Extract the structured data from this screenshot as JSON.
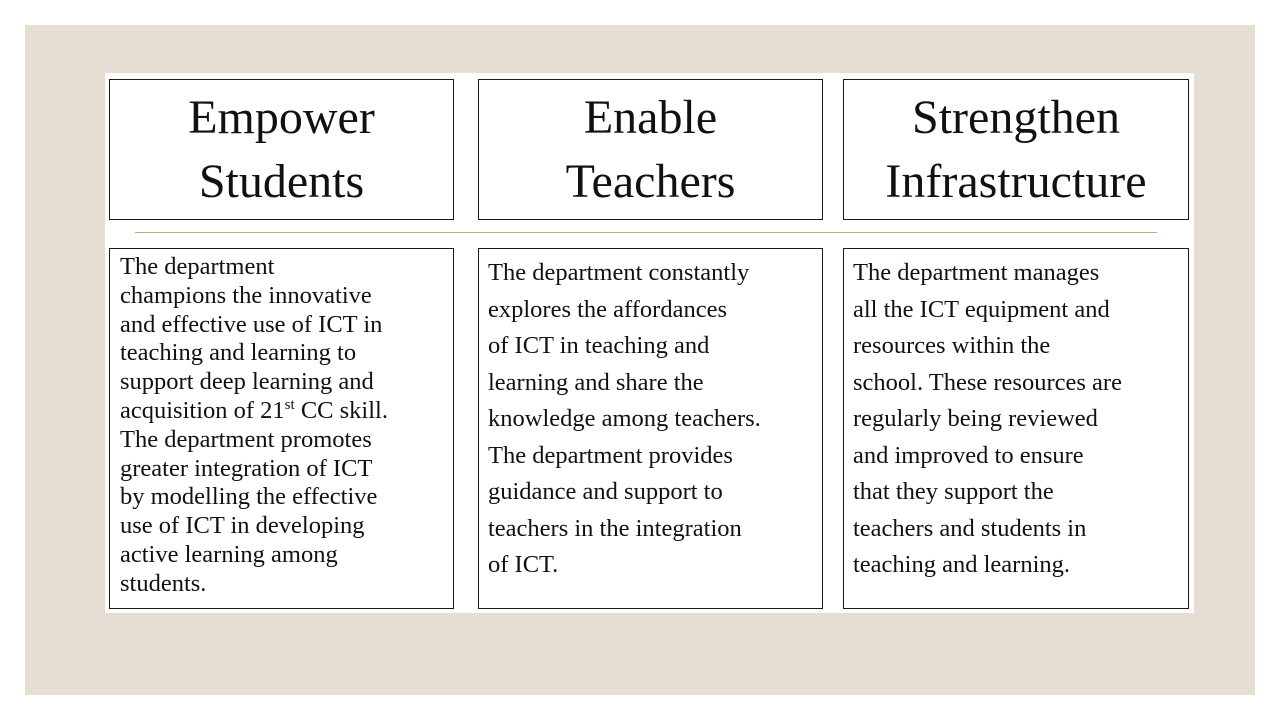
{
  "columns": [
    {
      "title": "Empower\nStudents",
      "body_part1": "The department\nchampions the innovative\nand effective use of ICT in\nteaching and learning to\nsupport deep learning and\nacquisition of 21",
      "body_sup": "st",
      "body_part2": " CC skill.\nThe department promotes\ngreater integration of ICT\nby modelling the effective\nuse of ICT in developing\nactive learning among\nstudents."
    },
    {
      "title": "Enable\nTeachers",
      "body": "The department constantly\nexplores the affordances\nof ICT in teaching and\nlearning and share the\nknowledge among teachers.\nThe department provides\nguidance and support to\nteachers in the integration\nof ICT."
    },
    {
      "title": "Strengthen\nInfrastructure",
      "body": "The department manages\nall the ICT equipment and\nresources within the\nschool. These resources are\nregularly being reviewed\nand improved to ensure\nthat they support the\nteachers and students in\nteaching and learning."
    }
  ],
  "colors": {
    "slide_background": "#e6ded3",
    "panel_background": "#ffffff",
    "box_border": "#1a1a1a",
    "divider": "#a9b37a"
  }
}
